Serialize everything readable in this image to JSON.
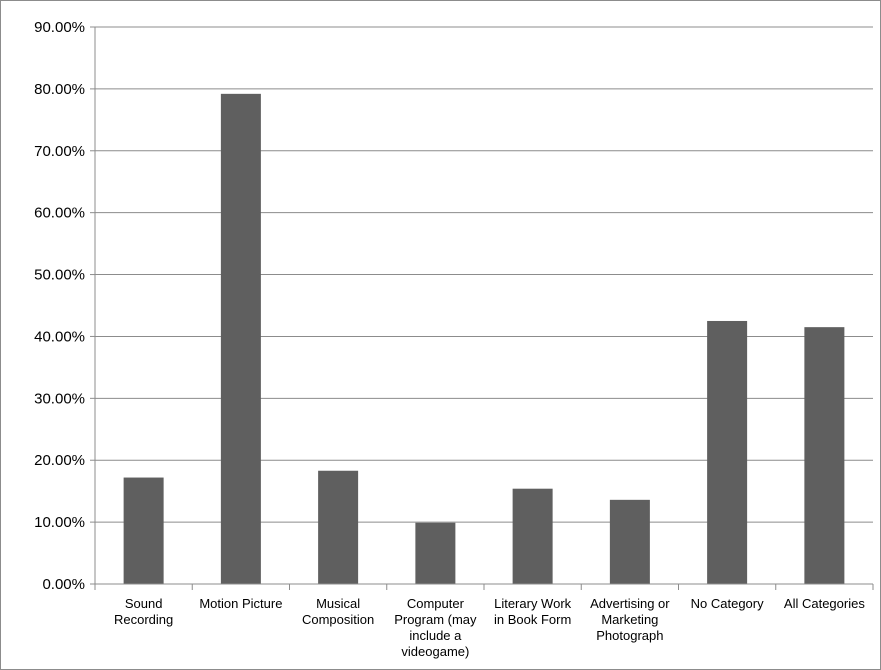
{
  "chart_data": {
    "type": "bar",
    "title": "",
    "xlabel": "",
    "ylabel": "",
    "ylim": [
      0,
      90
    ],
    "y_tick_values": [
      0,
      10,
      20,
      30,
      40,
      50,
      60,
      70,
      80,
      90
    ],
    "y_tick_labels": [
      "0.00%",
      "10.00%",
      "20.00%",
      "30.00%",
      "40.00%",
      "50.00%",
      "60.00%",
      "70.00%",
      "80.00%",
      "90.00%"
    ],
    "categories": [
      [
        "Sound",
        "Recording"
      ],
      [
        "Motion Picture"
      ],
      [
        "Musical",
        "Composition"
      ],
      [
        "Computer",
        "Program (may",
        "include a",
        "videogame)"
      ],
      [
        "Literary Work",
        "in Book Form"
      ],
      [
        "Advertising or",
        "Marketing",
        "Photograph"
      ],
      [
        "No Category"
      ],
      [
        "All Categories"
      ]
    ],
    "values": [
      17.2,
      79.2,
      18.3,
      9.9,
      15.4,
      13.6,
      42.5,
      41.5
    ],
    "grid": true,
    "legend": "none",
    "bar_color": "#5f5f5f",
    "grid_color": "#8c8c8c"
  }
}
